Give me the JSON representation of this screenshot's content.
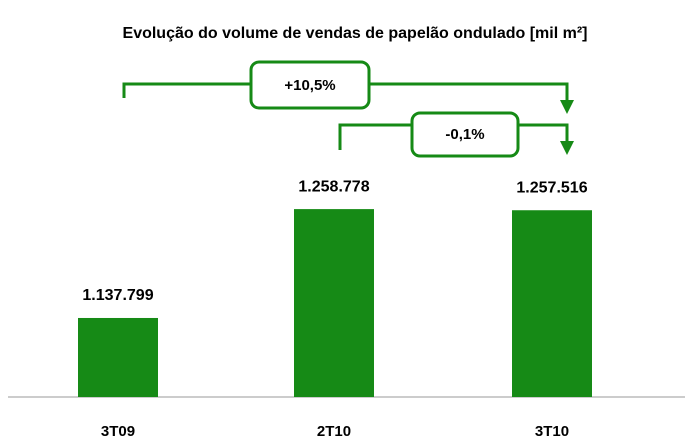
{
  "chart_data": {
    "type": "bar",
    "title": "Evolução do volume de vendas de papelão ondulado [mil m²]",
    "categories": [
      "3T09",
      "2T10",
      "3T10"
    ],
    "values": [
      1137799,
      1258778,
      1257516
    ],
    "value_labels": [
      "1.137.799",
      "1.258.778",
      "1.257.516"
    ],
    "color": "#168a16",
    "ylim": [
      1050000,
      1400000
    ],
    "annotations": [
      "+10,5%",
      "-0,1%"
    ]
  }
}
